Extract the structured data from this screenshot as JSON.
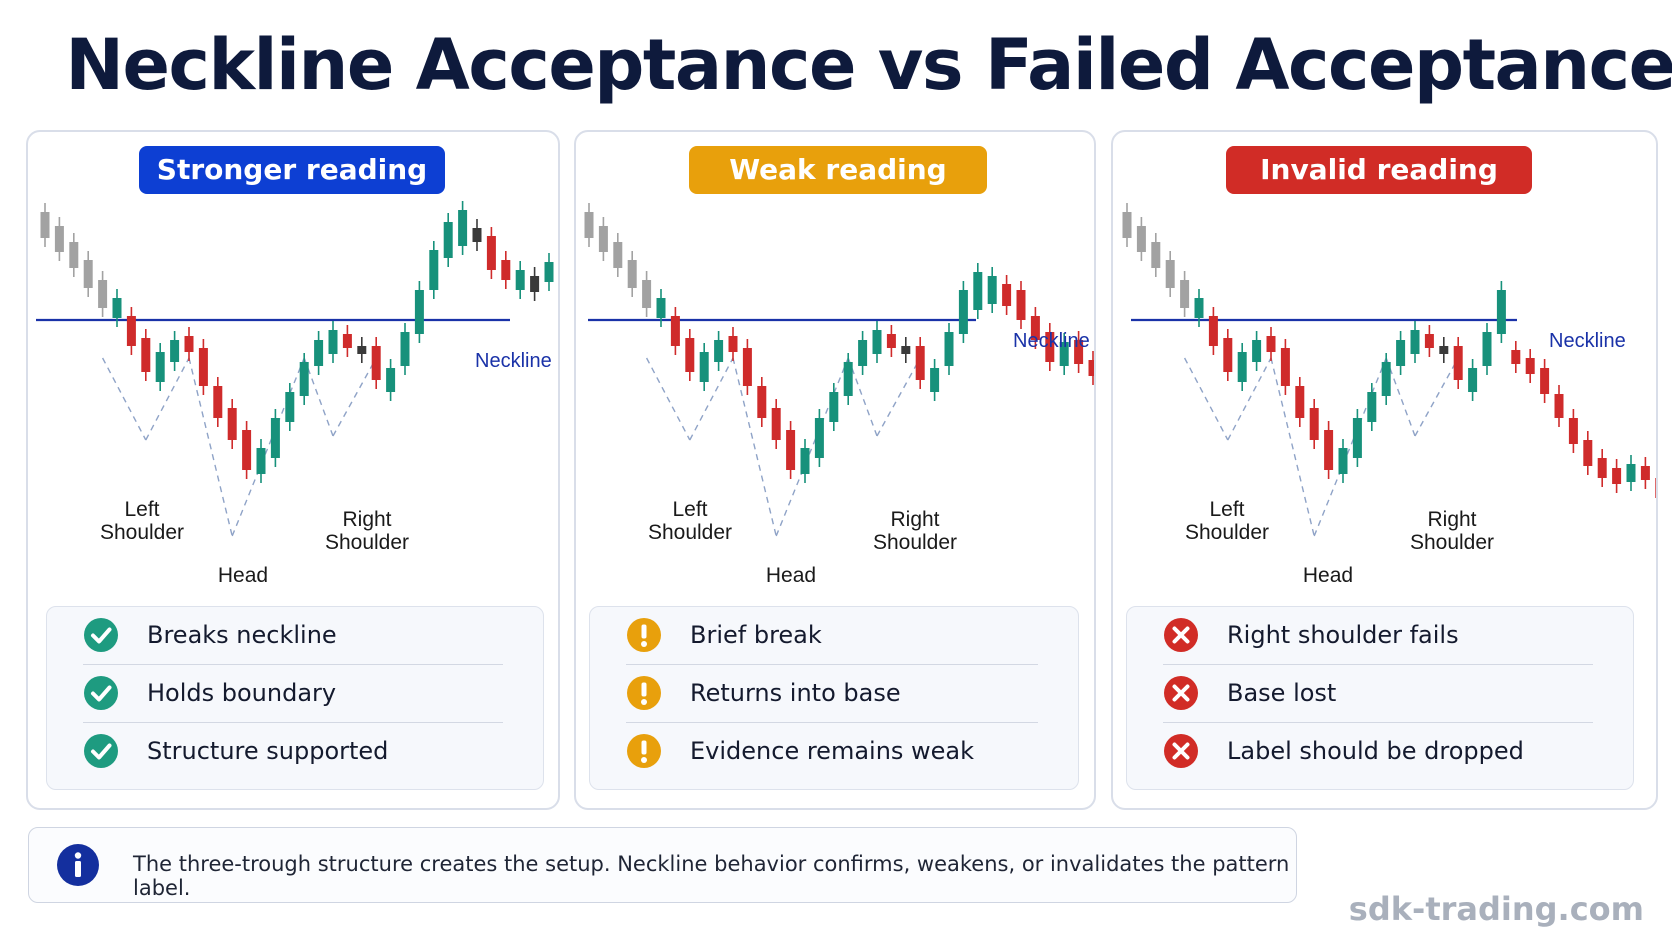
{
  "title": "Neckline Acceptance vs Failed Acceptance",
  "colors": {
    "blue": "#0d3fd3",
    "amber": "#e8a00c",
    "red": "#d12c26",
    "green": "#1e9b80",
    "candle_red": "#cf2b2b",
    "candle_green": "#17917b",
    "candle_gray": "#a2a2a2",
    "neckline": "#1a32a8",
    "title": "#0e1a3c"
  },
  "panels": [
    {
      "id": "stronger",
      "badge": "Stronger reading",
      "left_shoulder": "Left\nShoulder",
      "head": "Head",
      "right_shoulder": "Right\nShoulder",
      "neckline": "Neckline",
      "status_icon": "check-icon",
      "items": [
        "Breaks neckline",
        "Holds boundary",
        "Structure supported"
      ]
    },
    {
      "id": "weak",
      "badge": "Weak reading",
      "left_shoulder": "Left\nShoulder",
      "head": "Head",
      "right_shoulder": "Right\nShoulder",
      "neckline": "Neckline",
      "status_icon": "exclamation-icon",
      "items": [
        "Brief break",
        "Returns into base",
        "Evidence remains weak"
      ]
    },
    {
      "id": "invalid",
      "badge": "Invalid reading",
      "left_shoulder": "Left\nShoulder",
      "head": "Head",
      "right_shoulder": "Right\nShoulder",
      "neckline": "Neckline",
      "status_icon": "x-icon",
      "items": [
        "Right shoulder fails",
        "Base lost",
        "Label should be dropped"
      ]
    }
  ],
  "info": {
    "icon": "info-icon",
    "text": "The three-trough structure creates the setup. Neckline behavior confirms, weakens, or invalidates the pattern label."
  },
  "brand": "sdk-trading.com"
}
